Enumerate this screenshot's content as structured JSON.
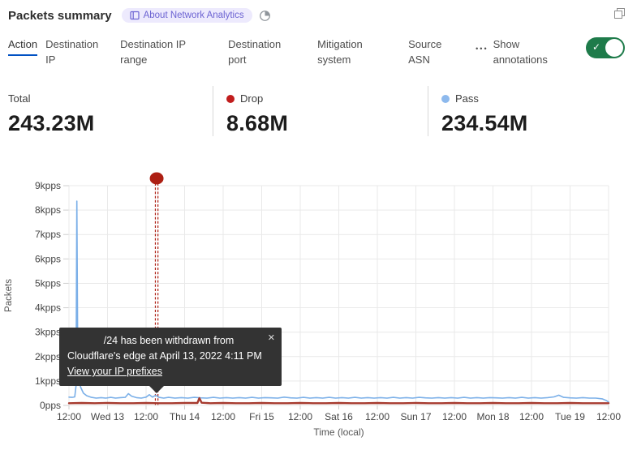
{
  "window": {
    "restore_icon": "restore-window-icon"
  },
  "header": {
    "title": "Packets summary",
    "badge": {
      "icon": "book-icon",
      "label": "About Network Analytics"
    },
    "freshness_icon": "pie-clock-icon"
  },
  "tabs": {
    "items": [
      {
        "label": "Action",
        "active": true
      },
      {
        "label": "Destination IP",
        "active": false
      },
      {
        "label": "Destination IP range",
        "active": false
      },
      {
        "label": "Destination port",
        "active": false
      },
      {
        "label": "Mitigation system",
        "active": false
      },
      {
        "label": "Source ASN",
        "active": false
      }
    ],
    "more_icon": "•••",
    "annotations_toggle": {
      "label": "Show annotations",
      "enabled": true,
      "check_glyph": "✓"
    }
  },
  "stats": [
    {
      "label": "Total",
      "value": "243.23M",
      "dot_color": null
    },
    {
      "label": "Drop",
      "value": "8.68M",
      "dot_color": "#c11d1d"
    },
    {
      "label": "Pass",
      "value": "234.54M",
      "dot_color": "#8db9ed"
    }
  ],
  "colors": {
    "accent_blue": "#0051c3",
    "grid": "#e9e9e9",
    "tick": "#cfcfcf",
    "axis_text": "#454545",
    "toggle_green": "#1e7b4a"
  },
  "chart_data": {
    "type": "line",
    "xlabel": "Time (local)",
    "ylabel": "Packets",
    "ylim": [
      0,
      9
    ],
    "y_tick_labels": [
      "0pps",
      "1kpps",
      "2kpps",
      "3kpps",
      "4kpps",
      "5kpps",
      "6kpps",
      "7kpps",
      "8kpps",
      "9kpps"
    ],
    "x_tick_hours": [
      0,
      12,
      24,
      36,
      48,
      60,
      72,
      84,
      96,
      108,
      120,
      132,
      144,
      156,
      168
    ],
    "x_tick_labels": [
      "12:00",
      "Wed 13",
      "12:00",
      "Thu 14",
      "12:00",
      "Fri 15",
      "12:00",
      "Sat 16",
      "12:00",
      "Sun 17",
      "12:00",
      "Mon 18",
      "12:00",
      "Tue 19",
      "12:00"
    ],
    "grid": true,
    "legend_position": "none",
    "series": [
      {
        "name": "Pass",
        "color": "#7aafe8",
        "width": 1.6,
        "points": [
          [
            0,
            0.34
          ],
          [
            1,
            0.33
          ],
          [
            1.8,
            0.35
          ],
          [
            2.2,
            0.8
          ],
          [
            2.45,
            8.37
          ],
          [
            2.7,
            2.6
          ],
          [
            3,
            1.3
          ],
          [
            3.6,
            0.75
          ],
          [
            4.5,
            0.5
          ],
          [
            5.5,
            0.4
          ],
          [
            7,
            0.33
          ],
          [
            8.5,
            0.3
          ],
          [
            10,
            0.32
          ],
          [
            11.5,
            0.3
          ],
          [
            13,
            0.33
          ],
          [
            14.5,
            0.3
          ],
          [
            16,
            0.32
          ],
          [
            17.5,
            0.33
          ],
          [
            18.5,
            0.48
          ],
          [
            19.5,
            0.38
          ],
          [
            21,
            0.32
          ],
          [
            22.5,
            0.3
          ],
          [
            24,
            0.34
          ],
          [
            25,
            0.44
          ],
          [
            26,
            0.34
          ],
          [
            27,
            0.42
          ],
          [
            28,
            0.33
          ],
          [
            29.5,
            0.3
          ],
          [
            31,
            0.33
          ],
          [
            33,
            0.3
          ],
          [
            35,
            0.32
          ],
          [
            37,
            0.3
          ],
          [
            39,
            0.33
          ],
          [
            41,
            0.31
          ],
          [
            43,
            0.3
          ],
          [
            45,
            0.33
          ],
          [
            47,
            0.3
          ],
          [
            49,
            0.32
          ],
          [
            51,
            0.3
          ],
          [
            53,
            0.32
          ],
          [
            55,
            0.3
          ],
          [
            57,
            0.33
          ],
          [
            59,
            0.3
          ],
          [
            61,
            0.32
          ],
          [
            63,
            0.31
          ],
          [
            65,
            0.3
          ],
          [
            67,
            0.34
          ],
          [
            69,
            0.31
          ],
          [
            71,
            0.3
          ],
          [
            73,
            0.33
          ],
          [
            75,
            0.3
          ],
          [
            77,
            0.32
          ],
          [
            79,
            0.3
          ],
          [
            81,
            0.33
          ],
          [
            83,
            0.3
          ],
          [
            85,
            0.32
          ],
          [
            87,
            0.3
          ],
          [
            89,
            0.33
          ],
          [
            91,
            0.3
          ],
          [
            93,
            0.32
          ],
          [
            95,
            0.3
          ],
          [
            97,
            0.32
          ],
          [
            99,
            0.3
          ],
          [
            101,
            0.33
          ],
          [
            103,
            0.3
          ],
          [
            105,
            0.32
          ],
          [
            107,
            0.3
          ],
          [
            109,
            0.33
          ],
          [
            111,
            0.31
          ],
          [
            113,
            0.3
          ],
          [
            115,
            0.32
          ],
          [
            117,
            0.3
          ],
          [
            119,
            0.32
          ],
          [
            121,
            0.3
          ],
          [
            123,
            0.33
          ],
          [
            125,
            0.3
          ],
          [
            127,
            0.32
          ],
          [
            129,
            0.3
          ],
          [
            131,
            0.32
          ],
          [
            133,
            0.31
          ],
          [
            135,
            0.3
          ],
          [
            137,
            0.32
          ],
          [
            139,
            0.3
          ],
          [
            141,
            0.33
          ],
          [
            143,
            0.3
          ],
          [
            145,
            0.32
          ],
          [
            147,
            0.3
          ],
          [
            149,
            0.32
          ],
          [
            151,
            0.35
          ],
          [
            152.5,
            0.42
          ],
          [
            154,
            0.33
          ],
          [
            156,
            0.31
          ],
          [
            158,
            0.3
          ],
          [
            160,
            0.32
          ],
          [
            162,
            0.3
          ],
          [
            164,
            0.3
          ],
          [
            166,
            0.27
          ],
          [
            167.3,
            0.2
          ],
          [
            168,
            0.14
          ]
        ]
      },
      {
        "name": "Drop",
        "color": "#a63a2e",
        "width": 2.4,
        "points": [
          [
            0,
            0.09
          ],
          [
            4,
            0.1
          ],
          [
            8,
            0.09
          ],
          [
            12,
            0.1
          ],
          [
            16,
            0.09
          ],
          [
            20,
            0.09
          ],
          [
            24,
            0.1
          ],
          [
            28,
            0.09
          ],
          [
            32,
            0.09
          ],
          [
            36,
            0.1
          ],
          [
            40,
            0.1
          ],
          [
            40.6,
            0.3
          ],
          [
            41.3,
            0.11
          ],
          [
            44,
            0.09
          ],
          [
            48,
            0.1
          ],
          [
            52,
            0.09
          ],
          [
            56,
            0.09
          ],
          [
            60,
            0.1
          ],
          [
            64,
            0.09
          ],
          [
            68,
            0.09
          ],
          [
            72,
            0.1
          ],
          [
            76,
            0.09
          ],
          [
            80,
            0.09
          ],
          [
            84,
            0.1
          ],
          [
            88,
            0.09
          ],
          [
            92,
            0.09
          ],
          [
            96,
            0.1
          ],
          [
            100,
            0.09
          ],
          [
            104,
            0.09
          ],
          [
            108,
            0.1
          ],
          [
            112,
            0.09
          ],
          [
            116,
            0.09
          ],
          [
            120,
            0.1
          ],
          [
            124,
            0.09
          ],
          [
            128,
            0.09
          ],
          [
            132,
            0.1
          ],
          [
            136,
            0.09
          ],
          [
            140,
            0.09
          ],
          [
            144,
            0.1
          ],
          [
            148,
            0.09
          ],
          [
            152,
            0.09
          ],
          [
            156,
            0.1
          ],
          [
            160,
            0.09
          ],
          [
            164,
            0.09
          ],
          [
            168,
            0.09
          ]
        ]
      }
    ],
    "annotation": {
      "hour": 27.3,
      "marker_color": "#ad1f13",
      "tooltip": {
        "line1": "/24 has been withdrawn from",
        "line2": "Cloudflare's edge at April 13, 2022 4:11 PM",
        "link": "View your IP prefixes",
        "close_glyph": "✕"
      }
    }
  }
}
